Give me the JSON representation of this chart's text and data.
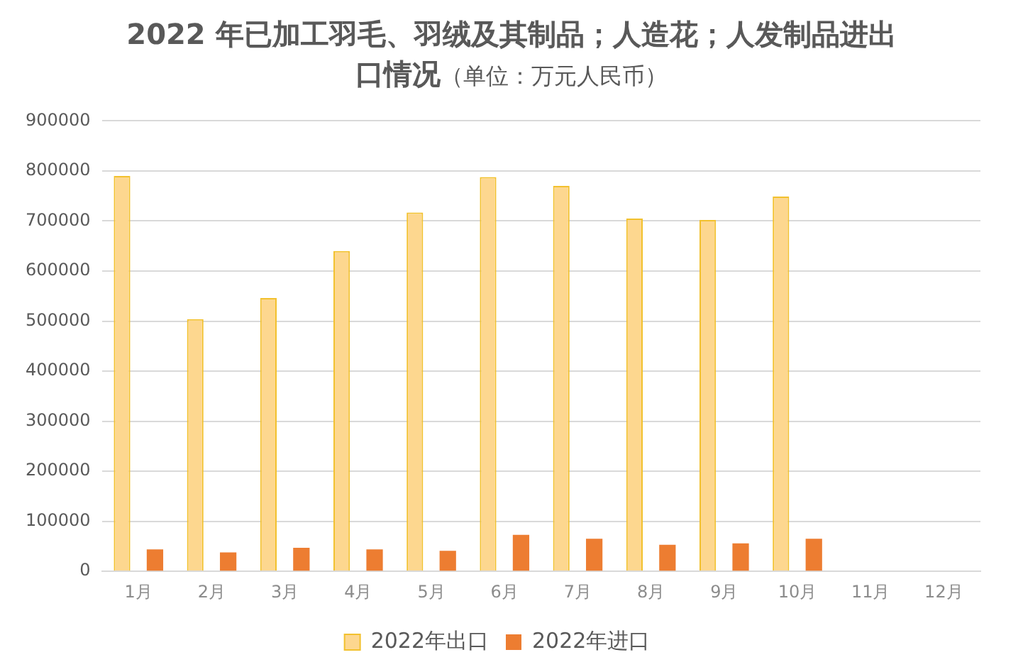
{
  "chart_data": {
    "type": "bar",
    "title": "2022 年已加工羽毛、羽绒及其制品；人造花；人发制品进出口情况",
    "subtitle": "（单位：万元人民币）",
    "categories": [
      "1月",
      "2月",
      "3月",
      "4月",
      "5月",
      "6月",
      "7月",
      "8月",
      "9月",
      "10月",
      "11月",
      "12月"
    ],
    "series": [
      {
        "name": "2022年出口",
        "color": "#fdd78f",
        "values": [
          790000,
          504000,
          546000,
          640000,
          717000,
          788000,
          770000,
          705000,
          702000,
          749000,
          null,
          null
        ]
      },
      {
        "name": "2022年进口",
        "color": "#ed7d31",
        "values": [
          44000,
          38000,
          47000,
          44000,
          41000,
          73000,
          65000,
          53000,
          56000,
          65000,
          null,
          null
        ]
      }
    ],
    "ylim": [
      0,
      900000
    ],
    "yticks": [
      0,
      100000,
      200000,
      300000,
      400000,
      500000,
      600000,
      700000,
      800000,
      900000
    ],
    "grid": "y",
    "legend": "bottom"
  }
}
